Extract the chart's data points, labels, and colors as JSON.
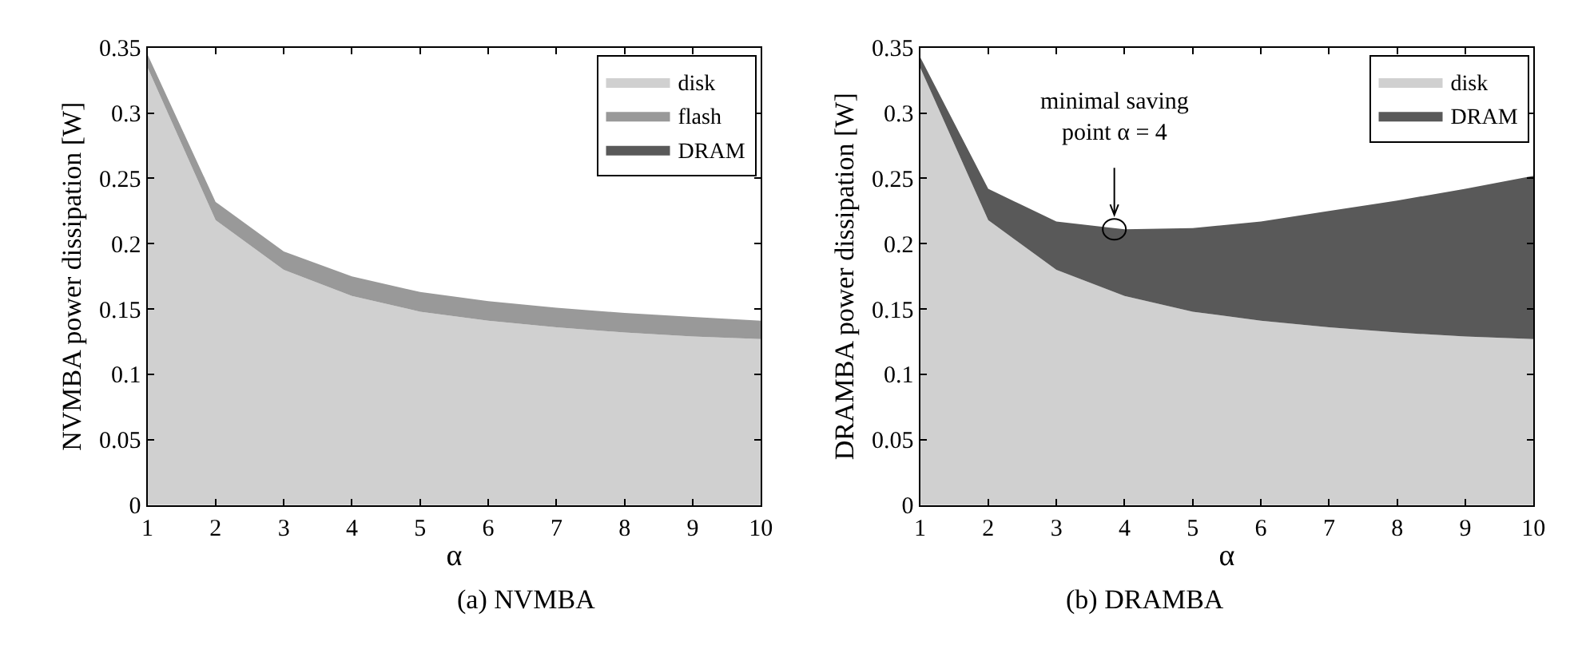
{
  "chart_data": [
    {
      "type": "area",
      "stacked": true,
      "xlabel": "α",
      "ylabel": "NVMBA power dissipation [W]",
      "x": [
        1,
        2,
        3,
        4,
        5,
        6,
        7,
        8,
        9,
        10
      ],
      "xlim": [
        1,
        10
      ],
      "xticks": [
        1,
        2,
        3,
        4,
        5,
        6,
        7,
        8,
        9,
        10
      ],
      "ylim": [
        0,
        0.35
      ],
      "yticks": [
        0,
        0.05,
        0.1,
        0.15,
        0.2,
        0.25,
        0.3,
        0.35
      ],
      "legend": "top right",
      "marker": "none",
      "series": [
        {
          "name": "disk",
          "color": "#d0d0d0",
          "values": [
            0.335,
            0.218,
            0.18,
            0.16,
            0.148,
            0.141,
            0.136,
            0.132,
            0.129,
            0.127
          ]
        },
        {
          "name": "flash",
          "color": "#999999",
          "values": [
            0.01,
            0.014,
            0.014,
            0.015,
            0.015,
            0.015,
            0.015,
            0.015,
            0.015,
            0.014
          ]
        },
        {
          "name": "DRAM",
          "color": "#595959",
          "values": [
            null,
            null,
            null,
            null,
            null,
            null,
            null,
            null,
            null,
            null
          ]
        }
      ],
      "annotations": [
        "(a) NVMBA"
      ]
    },
    {
      "type": "area",
      "stacked": true,
      "xlabel": "α",
      "ylabel": "DRAMBA power dissipation [W]",
      "x": [
        1,
        2,
        3,
        4,
        5,
        6,
        7,
        8,
        9,
        10
      ],
      "xlim": [
        1,
        10
      ],
      "xticks": [
        1,
        2,
        3,
        4,
        5,
        6,
        7,
        8,
        9,
        10
      ],
      "ylim": [
        0,
        0.35
      ],
      "yticks": [
        0,
        0.05,
        0.1,
        0.15,
        0.2,
        0.25,
        0.3,
        0.35
      ],
      "legend": "top right",
      "marker": "none",
      "series": [
        {
          "name": "disk",
          "color": "#d0d0d0",
          "values": [
            0.335,
            0.218,
            0.18,
            0.16,
            0.148,
            0.141,
            0.136,
            0.132,
            0.129,
            0.127
          ]
        },
        {
          "name": "DRAM",
          "color": "#595959",
          "values": [
            0.008,
            0.024,
            0.037,
            0.051,
            0.064,
            0.076,
            0.089,
            0.101,
            0.113,
            0.125
          ]
        }
      ],
      "annotations": [
        {
          "text": "minimal saving\npoint α = 4",
          "x": 3.85,
          "y": 0.211
        },
        "(b) DRAMBA"
      ]
    }
  ]
}
